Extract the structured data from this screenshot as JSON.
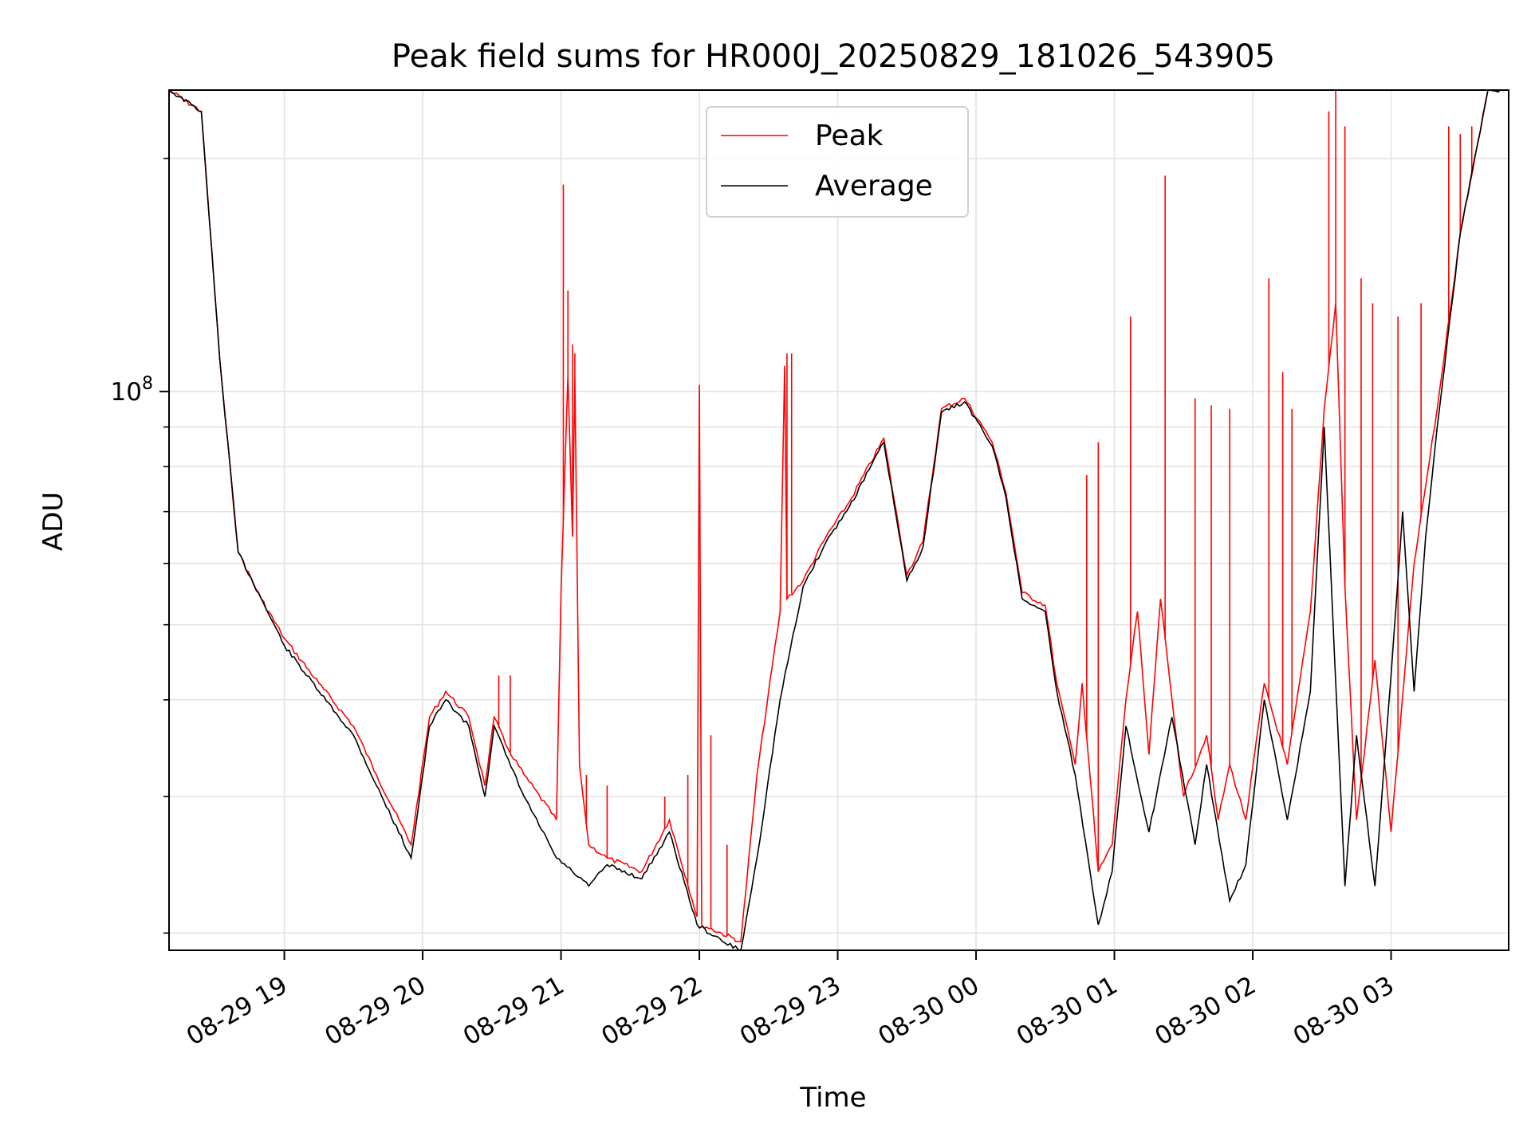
{
  "chart_data": {
    "type": "line",
    "title": "Peak field sums for HR000J_20250829_181026_543905",
    "xlabel": "Time",
    "ylabel": "ADU",
    "yscale": "log",
    "grid": true,
    "legend_position": "top-center",
    "xlim": [
      "2025-08-29 18:10",
      "2025-08-30 03:51"
    ],
    "ylim": [
      19000000.0,
      245000000.0
    ],
    "x_ticks": [
      {
        "t": "2025-08-29 19:00",
        "label": "08-29 19"
      },
      {
        "t": "2025-08-29 20:00",
        "label": "08-29 20"
      },
      {
        "t": "2025-08-29 21:00",
        "label": "08-29 21"
      },
      {
        "t": "2025-08-29 22:00",
        "label": "08-29 22"
      },
      {
        "t": "2025-08-29 23:00",
        "label": "08-29 23"
      },
      {
        "t": "2025-08-30 00:00",
        "label": "08-30 00"
      },
      {
        "t": "2025-08-30 01:00",
        "label": "08-30 01"
      },
      {
        "t": "2025-08-30 02:00",
        "label": "08-30 02"
      },
      {
        "t": "2025-08-30 03:00",
        "label": "08-30 03"
      }
    ],
    "y_major_ticks": [
      {
        "value": 100000000.0,
        "base": "10",
        "exp": "8"
      }
    ],
    "y_minor_ticks": [
      20000000.0,
      30000000.0,
      40000000.0,
      50000000.0,
      60000000.0,
      70000000.0,
      80000000.0,
      90000000.0,
      200000000.0
    ],
    "series": [
      {
        "name": "Peak",
        "color": "#ff0000",
        "x": [
          "2025-08-29 18:10",
          "2025-08-29 18:24",
          "2025-08-29 18:32",
          "2025-08-29 18:40",
          "2025-08-29 18:50",
          "2025-08-29 19:00",
          "2025-08-29 19:15",
          "2025-08-29 19:30",
          "2025-08-29 19:40",
          "2025-08-29 19:55",
          "2025-08-29 20:03",
          "2025-08-29 20:10",
          "2025-08-29 20:20",
          "2025-08-29 20:27",
          "2025-08-29 20:31",
          "2025-08-29 20:36",
          "2025-08-29 20:44",
          "2025-08-29 20:58",
          "2025-08-29 21:00",
          "2025-08-29 21:03",
          "2025-08-29 21:05",
          "2025-08-29 21:06",
          "2025-08-29 21:08",
          "2025-08-29 21:12",
          "2025-08-29 21:20",
          "2025-08-29 21:35",
          "2025-08-29 21:47",
          "2025-08-29 21:59",
          "2025-08-29 22:00",
          "2025-08-29 22:01",
          "2025-08-29 22:18",
          "2025-08-29 22:25",
          "2025-08-29 22:35",
          "2025-08-29 22:37",
          "2025-08-29 22:38",
          "2025-08-29 22:45",
          "2025-08-29 22:55",
          "2025-08-29 23:05",
          "2025-08-29 23:20",
          "2025-08-29 23:30",
          "2025-08-29 23:37",
          "2025-08-29 23:45",
          "2025-08-29 23:55",
          "2025-08-30 00:03",
          "2025-08-30 00:07",
          "2025-08-30 00:13",
          "2025-08-30 00:20",
          "2025-08-30 00:30",
          "2025-08-30 00:35",
          "2025-08-30 00:43",
          "2025-08-30 00:46",
          "2025-08-30 00:53",
          "2025-08-30 00:59",
          "2025-08-30 01:05",
          "2025-08-30 01:10",
          "2025-08-30 01:15",
          "2025-08-30 01:20",
          "2025-08-30 01:25",
          "2025-08-30 01:30",
          "2025-08-30 01:40",
          "2025-08-30 01:45",
          "2025-08-30 01:50",
          "2025-08-30 01:57",
          "2025-08-30 02:05",
          "2025-08-30 02:15",
          "2025-08-30 02:25",
          "2025-08-30 02:31",
          "2025-08-30 02:36",
          "2025-08-30 02:40",
          "2025-08-30 02:45",
          "2025-08-30 02:53",
          "2025-08-30 03:00",
          "2025-08-30 03:10",
          "2025-08-30 03:20",
          "2025-08-30 03:30",
          "2025-08-30 03:42",
          "2025-08-30 03:45",
          "2025-08-30 03:51"
        ],
        "y": [
          245000000.0,
          230000000.0,
          110000000.0,
          62000000.0,
          54000000.0,
          48000000.0,
          42000000.0,
          37000000.0,
          32000000.0,
          26000000.0,
          38000000.0,
          41000000.0,
          38000000.0,
          31000000.0,
          38000000.0,
          35000000.0,
          32000000.0,
          28000000.0,
          55000000.0,
          105000000.0,
          65000000.0,
          105000000.0,
          33000000.0,
          26000000.0,
          25000000.0,
          24000000.0,
          28000000.0,
          21000000.0,
          102000000.0,
          20500000.0,
          19500000.0,
          32000000.0,
          52000000.0,
          108000000.0,
          54000000.0,
          57000000.0,
          65000000.0,
          72000000.0,
          87000000.0,
          58000000.0,
          64000000.0,
          95000000.0,
          98000000.0,
          90000000.0,
          86000000.0,
          74000000.0,
          55000000.0,
          53000000.0,
          42000000.0,
          33000000.0,
          42000000.0,
          24000000.0,
          26000000.0,
          40000000.0,
          52000000.0,
          34000000.0,
          54000000.0,
          40000000.0,
          30000000.0,
          36000000.0,
          28000000.0,
          33000000.0,
          28000000.0,
          42000000.0,
          33000000.0,
          52000000.0,
          95000000.0,
          130000000.0,
          56000000.0,
          28000000.0,
          45000000.0,
          27000000.0,
          60000000.0,
          95000000.0,
          160000000.0,
          245000000.0,
          245000000.0,
          245000000.0
        ],
        "spikes": [
          {
            "t": "2025-08-29 20:33",
            "y": 43000000.0
          },
          {
            "t": "2025-08-29 20:38",
            "y": 43000000.0
          },
          {
            "t": "2025-08-29 21:01",
            "y": 185000000.0
          },
          {
            "t": "2025-08-29 21:03",
            "y": 135000000.0
          },
          {
            "t": "2025-08-29 21:05",
            "y": 115000000.0
          },
          {
            "t": "2025-08-29 21:06",
            "y": 112000000.0
          },
          {
            "t": "2025-08-29 21:11",
            "y": 32000000.0
          },
          {
            "t": "2025-08-29 21:20",
            "y": 31000000.0
          },
          {
            "t": "2025-08-29 21:45",
            "y": 30000000.0
          },
          {
            "t": "2025-08-29 21:55",
            "y": 32000000.0
          },
          {
            "t": "2025-08-29 22:00",
            "y": 102000000.0
          },
          {
            "t": "2025-08-29 22:05",
            "y": 36000000.0
          },
          {
            "t": "2025-08-29 22:12",
            "y": 26000000.0
          },
          {
            "t": "2025-08-29 22:38",
            "y": 112000000.0
          },
          {
            "t": "2025-08-29 22:40",
            "y": 112000000.0
          },
          {
            "t": "2025-08-30 00:48",
            "y": 78000000.0
          },
          {
            "t": "2025-08-30 00:53",
            "y": 86000000.0
          },
          {
            "t": "2025-08-30 01:07",
            "y": 125000000.0
          },
          {
            "t": "2025-08-30 01:22",
            "y": 190000000.0
          },
          {
            "t": "2025-08-30 01:35",
            "y": 98000000.0
          },
          {
            "t": "2025-08-30 01:42",
            "y": 96000000.0
          },
          {
            "t": "2025-08-30 01:50",
            "y": 95000000.0
          },
          {
            "t": "2025-08-30 02:07",
            "y": 140000000.0
          },
          {
            "t": "2025-08-30 02:13",
            "y": 106000000.0
          },
          {
            "t": "2025-08-30 02:17",
            "y": 95000000.0
          },
          {
            "t": "2025-08-30 02:33",
            "y": 230000000.0
          },
          {
            "t": "2025-08-30 02:36",
            "y": 245000000.0
          },
          {
            "t": "2025-08-30 02:40",
            "y": 220000000.0
          },
          {
            "t": "2025-08-30 02:47",
            "y": 140000000.0
          },
          {
            "t": "2025-08-30 02:52",
            "y": 130000000.0
          },
          {
            "t": "2025-08-30 03:03",
            "y": 125000000.0
          },
          {
            "t": "2025-08-30 03:13",
            "y": 130000000.0
          },
          {
            "t": "2025-08-30 03:25",
            "y": 220000000.0
          },
          {
            "t": "2025-08-30 03:30",
            "y": 215000000.0
          },
          {
            "t": "2025-08-30 03:35",
            "y": 220000000.0
          },
          {
            "t": "2025-08-30 03:40",
            "y": 230000000.0
          }
        ]
      },
      {
        "name": "Average",
        "color": "#000000",
        "x": [
          "2025-08-29 18:10",
          "2025-08-29 18:24",
          "2025-08-29 18:32",
          "2025-08-29 18:40",
          "2025-08-29 18:50",
          "2025-08-29 19:00",
          "2025-08-29 19:15",
          "2025-08-29 19:30",
          "2025-08-29 19:40",
          "2025-08-29 19:55",
          "2025-08-29 20:03",
          "2025-08-29 20:10",
          "2025-08-29 20:20",
          "2025-08-29 20:27",
          "2025-08-29 20:31",
          "2025-08-29 20:36",
          "2025-08-29 20:44",
          "2025-08-29 20:58",
          "2025-08-29 21:05",
          "2025-08-29 21:12",
          "2025-08-29 21:20",
          "2025-08-29 21:35",
          "2025-08-29 21:47",
          "2025-08-29 21:59",
          "2025-08-29 22:10",
          "2025-08-29 22:18",
          "2025-08-29 22:25",
          "2025-08-29 22:35",
          "2025-08-29 22:45",
          "2025-08-29 22:55",
          "2025-08-29 23:05",
          "2025-08-29 23:20",
          "2025-08-29 23:30",
          "2025-08-29 23:37",
          "2025-08-29 23:45",
          "2025-08-29 23:55",
          "2025-08-30 00:03",
          "2025-08-30 00:07",
          "2025-08-30 00:13",
          "2025-08-30 00:20",
          "2025-08-30 00:30",
          "2025-08-30 00:35",
          "2025-08-30 00:43",
          "2025-08-30 00:53",
          "2025-08-30 00:59",
          "2025-08-30 01:05",
          "2025-08-30 01:15",
          "2025-08-30 01:25",
          "2025-08-30 01:35",
          "2025-08-30 01:40",
          "2025-08-30 01:50",
          "2025-08-30 01:57",
          "2025-08-30 02:05",
          "2025-08-30 02:15",
          "2025-08-30 02:25",
          "2025-08-30 02:31",
          "2025-08-30 02:40",
          "2025-08-30 02:45",
          "2025-08-30 02:53",
          "2025-08-30 03:00",
          "2025-08-30 03:05",
          "2025-08-30 03:10",
          "2025-08-30 03:15",
          "2025-08-30 03:20",
          "2025-08-30 03:30",
          "2025-08-30 03:42",
          "2025-08-30 03:51"
        ],
        "y": [
          245000000.0,
          230000000.0,
          110000000.0,
          62000000.0,
          54000000.0,
          47000000.0,
          41000000.0,
          36000000.0,
          31000000.0,
          25000000.0,
          37000000.0,
          40000000.0,
          37000000.0,
          30000000.0,
          37000000.0,
          34000000.0,
          30000000.0,
          25000000.0,
          24000000.0,
          23000000.0,
          24500000.0,
          23500000.0,
          27000000.0,
          20500000.0,
          19500000.0,
          19000000.0,
          25000000.0,
          40000000.0,
          56000000.0,
          64000000.0,
          71000000.0,
          86000000.0,
          57000000.0,
          63000000.0,
          94000000.0,
          97000000.0,
          89000000.0,
          85000000.0,
          73000000.0,
          54000000.0,
          52000000.0,
          41000000.0,
          32000000.0,
          20500000.0,
          24000000.0,
          37000000.0,
          27000000.0,
          38000000.0,
          26000000.0,
          33000000.0,
          22000000.0,
          24500000.0,
          40000000.0,
          28000000.0,
          41000000.0,
          90000000.0,
          23000000.0,
          36000000.0,
          23000000.0,
          43000000.0,
          70000000.0,
          41000000.0,
          65000000.0,
          90000000.0,
          160000000.0,
          245000000.0,
          245000000.0
        ]
      }
    ]
  }
}
